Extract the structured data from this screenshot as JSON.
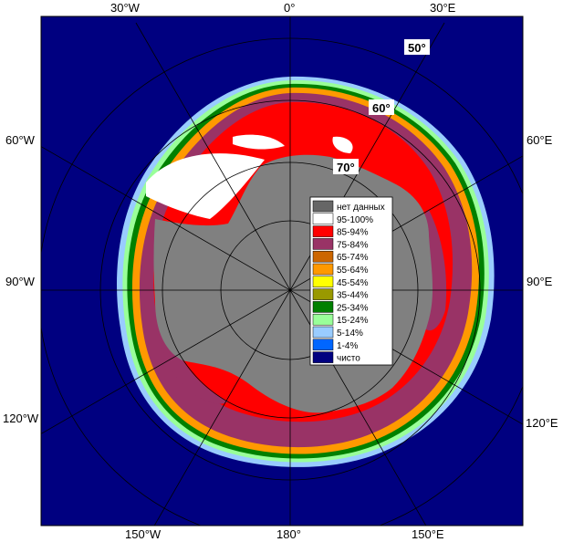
{
  "map": {
    "meridian_labels": {
      "top_30w": "30°W",
      "top_0": "0°",
      "top_30e": "30°E",
      "left_60w": "60°W",
      "left_90w": "90°W",
      "left_120w": "120°W",
      "right_60e": "60°E",
      "right_90e": "90°E",
      "right_120e": "120°E",
      "bottom_150w": "150°W",
      "bottom_180": "180°",
      "bottom_150e": "150°E"
    },
    "latitude_labels": {
      "lat50": "50°",
      "lat60": "60°",
      "lat70": "70°"
    },
    "colors": {
      "ocean": "#000080",
      "land": "#808080",
      "ice_95_100": "#ffffff",
      "ice_85_94": "#ff0000",
      "ice_75_84": "#993366",
      "ice_65_74": "#cc6600",
      "ice_55_64": "#ff9900",
      "ice_45_54": "#ffff00",
      "ice_35_44": "#999900",
      "ice_25_34": "#008000",
      "ice_15_24": "#99ff99",
      "ice_5_14": "#99ccff",
      "ice_1_4": "#0066ff",
      "frame": "#000000"
    }
  },
  "legend": {
    "items": [
      {
        "label": "нет данных",
        "color": "#666666"
      },
      {
        "label": "95-100%",
        "color": "#ffffff"
      },
      {
        "label": "85-94%",
        "color": "#ff0000"
      },
      {
        "label": "75-84%",
        "color": "#993366"
      },
      {
        "label": "65-74%",
        "color": "#cc6600"
      },
      {
        "label": "55-64%",
        "color": "#ff9900"
      },
      {
        "label": "45-54%",
        "color": "#ffff00"
      },
      {
        "label": "35-44%",
        "color": "#999900"
      },
      {
        "label": "25-34%",
        "color": "#008000"
      },
      {
        "label": "15-24%",
        "color": "#99ff99"
      },
      {
        "label": "5-14%",
        "color": "#99ccff"
      },
      {
        "label": "1-4%",
        "color": "#0066ff"
      },
      {
        "label": "чисто",
        "color": "#000080"
      }
    ]
  }
}
